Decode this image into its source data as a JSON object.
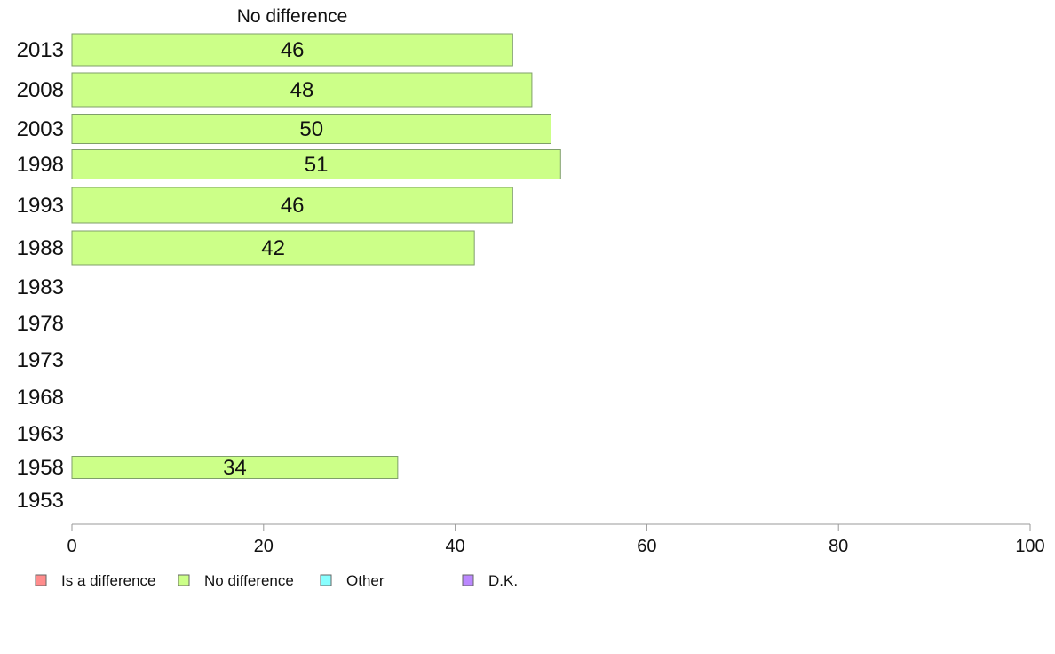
{
  "chart_data": {
    "type": "bar",
    "orientation": "horizontal",
    "title": "No difference",
    "categories": [
      "2013",
      "2008",
      "2003",
      "1998",
      "1993",
      "1988",
      "1983",
      "1978",
      "1973",
      "1968",
      "1963",
      "1958",
      "1953"
    ],
    "series": [
      {
        "name": "No difference",
        "values": [
          46,
          48,
          50,
          51,
          46,
          42,
          null,
          null,
          null,
          null,
          null,
          34,
          null
        ]
      }
    ],
    "data_labels": [
      "46",
      "48",
      "50",
      "51",
      "46",
      "42",
      "",
      "",
      "",
      "",
      "",
      "34",
      ""
    ],
    "xlim": [
      0,
      100
    ],
    "xticks": [
      0,
      20,
      40,
      60,
      80,
      100
    ],
    "grid": false,
    "legend": {
      "position": "bottom-left",
      "entries": [
        {
          "label": "Is a difference",
          "color": "#ff8c8c"
        },
        {
          "label": "No difference",
          "color": "#ccff88"
        },
        {
          "label": "Other",
          "color": "#88ffff"
        },
        {
          "label": "D.K.",
          "color": "#bb88ff"
        }
      ]
    },
    "colors": {
      "bar_fill": "#ccff88",
      "axis": "#999999"
    }
  }
}
